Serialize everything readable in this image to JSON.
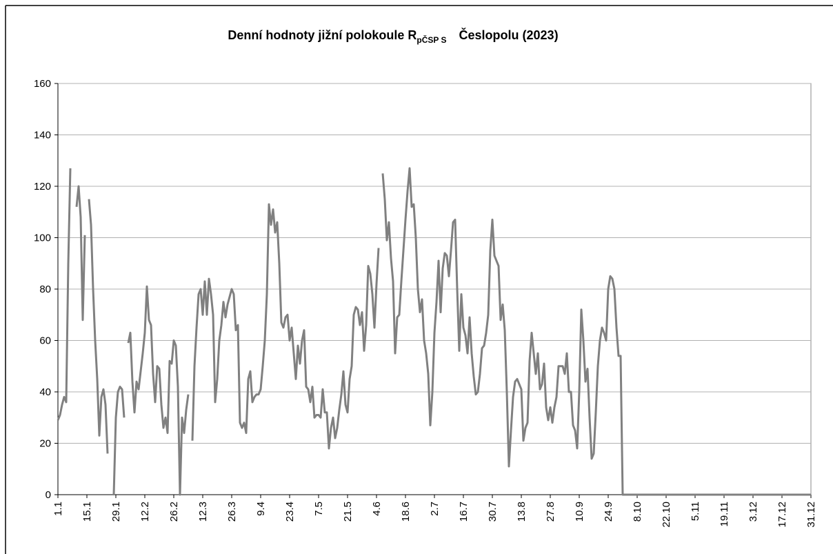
{
  "chart_data": {
    "type": "line",
    "title": "Denní hodnoty jižní polokoule R",
    "title_subscript": "pČSP S",
    "title_suffix": "Česlopolu (2023)",
    "categories": [
      "1.1",
      null,
      null,
      null,
      null,
      null,
      null,
      null,
      null,
      null,
      null,
      null,
      null,
      null,
      "15.1",
      null,
      null,
      null,
      null,
      null,
      null,
      null,
      null,
      null,
      null,
      null,
      null,
      null,
      "29.1",
      null,
      null,
      null,
      null,
      null,
      null,
      null,
      null,
      null,
      null,
      null,
      null,
      null,
      "12.2",
      null,
      null,
      null,
      null,
      null,
      null,
      null,
      null,
      null,
      null,
      null,
      null,
      null,
      "26.2",
      null,
      null,
      null,
      null,
      null,
      null,
      null,
      null,
      null,
      null,
      null,
      null,
      null,
      "12.3",
      null,
      null,
      null,
      null,
      null,
      null,
      null,
      null,
      null,
      null,
      null,
      null,
      null,
      "26.3",
      null,
      null,
      null,
      null,
      null,
      null,
      null,
      null,
      null,
      null,
      null,
      null,
      null,
      "9.4",
      null,
      null,
      null,
      null,
      null,
      null,
      null,
      null,
      null,
      null,
      null,
      null,
      null,
      "23.4",
      null,
      null,
      null,
      null,
      null,
      null,
      null,
      null,
      null,
      null,
      null,
      null,
      null,
      "7.5",
      null,
      null,
      null,
      null,
      null,
      null,
      null,
      null,
      null,
      null,
      null,
      null,
      null,
      "21.5",
      null,
      null,
      null,
      null,
      null,
      null,
      null,
      null,
      null,
      null,
      null,
      null,
      null,
      "4.6",
      null,
      null,
      null,
      null,
      null,
      null,
      null,
      null,
      null,
      null,
      null,
      null,
      null,
      "18.6",
      null,
      null,
      null,
      null,
      null,
      null,
      null,
      null,
      null,
      null,
      null,
      null,
      null,
      "2.7",
      null,
      null,
      null,
      null,
      null,
      null,
      null,
      null,
      null,
      null,
      null,
      null,
      null,
      "16.7",
      null,
      null,
      null,
      null,
      null,
      null,
      null,
      null,
      null,
      null,
      null,
      null,
      null,
      "30.7",
      null,
      null,
      null,
      null,
      null,
      null,
      null,
      null,
      null,
      null,
      null,
      null,
      null,
      "13.8",
      null,
      null,
      null,
      null,
      null,
      null,
      null,
      null,
      null,
      null,
      null,
      null,
      null,
      "27.8",
      null,
      null,
      null,
      null,
      null,
      null,
      null,
      null,
      null,
      null,
      null,
      null,
      null,
      "10.9",
      null,
      null,
      null,
      null,
      null,
      null,
      null,
      null,
      null,
      null,
      null,
      null,
      null,
      "24.9",
      null,
      null,
      null,
      null,
      null,
      null,
      null,
      null,
      null,
      null,
      null,
      null,
      null,
      "8.10",
      null,
      null,
      null,
      null,
      null,
      null,
      null,
      null,
      null,
      null,
      null,
      null,
      null,
      "22.10",
      null,
      null,
      null,
      null,
      null,
      null,
      null,
      null,
      null,
      null,
      null,
      null,
      null,
      "5.11",
      null,
      null,
      null,
      null,
      null,
      null,
      null,
      null,
      null,
      null,
      null,
      null,
      null,
      "19.11",
      null,
      null,
      null,
      null,
      null,
      null,
      null,
      null,
      null,
      null,
      null,
      null,
      null,
      "3.12",
      null,
      null,
      null,
      null,
      null,
      null,
      null,
      null,
      null,
      null,
      null,
      null,
      null,
      "17.12",
      null,
      null,
      null,
      null,
      null,
      null,
      null,
      null,
      null,
      null,
      null,
      null,
      null,
      "31.12"
    ],
    "series": [
      {
        "color": "#808080",
        "values": [
          29,
          31,
          35,
          38,
          36,
          90,
          127,
          null,
          null,
          112,
          120,
          108,
          68,
          101,
          null,
          115,
          105,
          80,
          60,
          45,
          23,
          38,
          41,
          35,
          16,
          null,
          null,
          0,
          30,
          40,
          42,
          41,
          30,
          null,
          59,
          63,
          44,
          32,
          44,
          41,
          48,
          55,
          63,
          81,
          68,
          66,
          47,
          36,
          50,
          49,
          35,
          26,
          30,
          24,
          52,
          51,
          60,
          58,
          42,
          0,
          30,
          24,
          33,
          39,
          null,
          21,
          50,
          65,
          78,
          80,
          70,
          83,
          70,
          84,
          78,
          70,
          36,
          45,
          60,
          66,
          75,
          69,
          74,
          77,
          80,
          78,
          64,
          66,
          28,
          26,
          28,
          24,
          45,
          48,
          36,
          38,
          39,
          39,
          41,
          50,
          60,
          78,
          113,
          105,
          111,
          102,
          106,
          90,
          67,
          65,
          69,
          70,
          60,
          65,
          55,
          45,
          58,
          51,
          60,
          64,
          42,
          41,
          36,
          42,
          30,
          31,
          31,
          30,
          41,
          32,
          32,
          18,
          26,
          30,
          22,
          26,
          33,
          39,
          48,
          35,
          32,
          45,
          50,
          70,
          73,
          72,
          66,
          71,
          56,
          66,
          89,
          86,
          78,
          65,
          82,
          96,
          null,
          125,
          115,
          99,
          106,
          92,
          83,
          55,
          69,
          70,
          83,
          95,
          107,
          118,
          127,
          112,
          113,
          100,
          80,
          71,
          76,
          60,
          55,
          47,
          27,
          40,
          63,
          75,
          91,
          71,
          88,
          94,
          93,
          85,
          95,
          106,
          107,
          80,
          56,
          78,
          65,
          62,
          55,
          69,
          55,
          46,
          39,
          40,
          47,
          57,
          58,
          63,
          70,
          95,
          107,
          93,
          91,
          89,
          68,
          74,
          64,
          40,
          11,
          25,
          38,
          44,
          45,
          43,
          41,
          21,
          26,
          28,
          52,
          63,
          55,
          47,
          55,
          41,
          43,
          51,
          34,
          29,
          34,
          28,
          34,
          38,
          50,
          50,
          50,
          47,
          55,
          40,
          40,
          27,
          25,
          18,
          40,
          72,
          60,
          44,
          49,
          30,
          14,
          16,
          32,
          50,
          60,
          65,
          63,
          60,
          80,
          85,
          84,
          80,
          65,
          54,
          54,
          0,
          0,
          0,
          0,
          0,
          0,
          0,
          0,
          0,
          0,
          0,
          0,
          0,
          0,
          0,
          0,
          0,
          0,
          0,
          0,
          0,
          0,
          0,
          0,
          0,
          0,
          0,
          0,
          0,
          0,
          0,
          0,
          0,
          0,
          0,
          0,
          0,
          0,
          0,
          0,
          0,
          0,
          0,
          0,
          0,
          0,
          0,
          0,
          0,
          0,
          0,
          0,
          0,
          0,
          0,
          0,
          0,
          0,
          0,
          0,
          0,
          0,
          0,
          0,
          0,
          0,
          0,
          0,
          0,
          0,
          0,
          0,
          0,
          0,
          0,
          0,
          0,
          0,
          0,
          0,
          0,
          0,
          0,
          0,
          0,
          0,
          0,
          0,
          0,
          0,
          0,
          0
        ]
      }
    ],
    "ylim": [
      0,
      160
    ],
    "yticks": [
      0,
      20,
      40,
      60,
      80,
      100,
      120,
      140,
      160
    ],
    "grid": true
  }
}
